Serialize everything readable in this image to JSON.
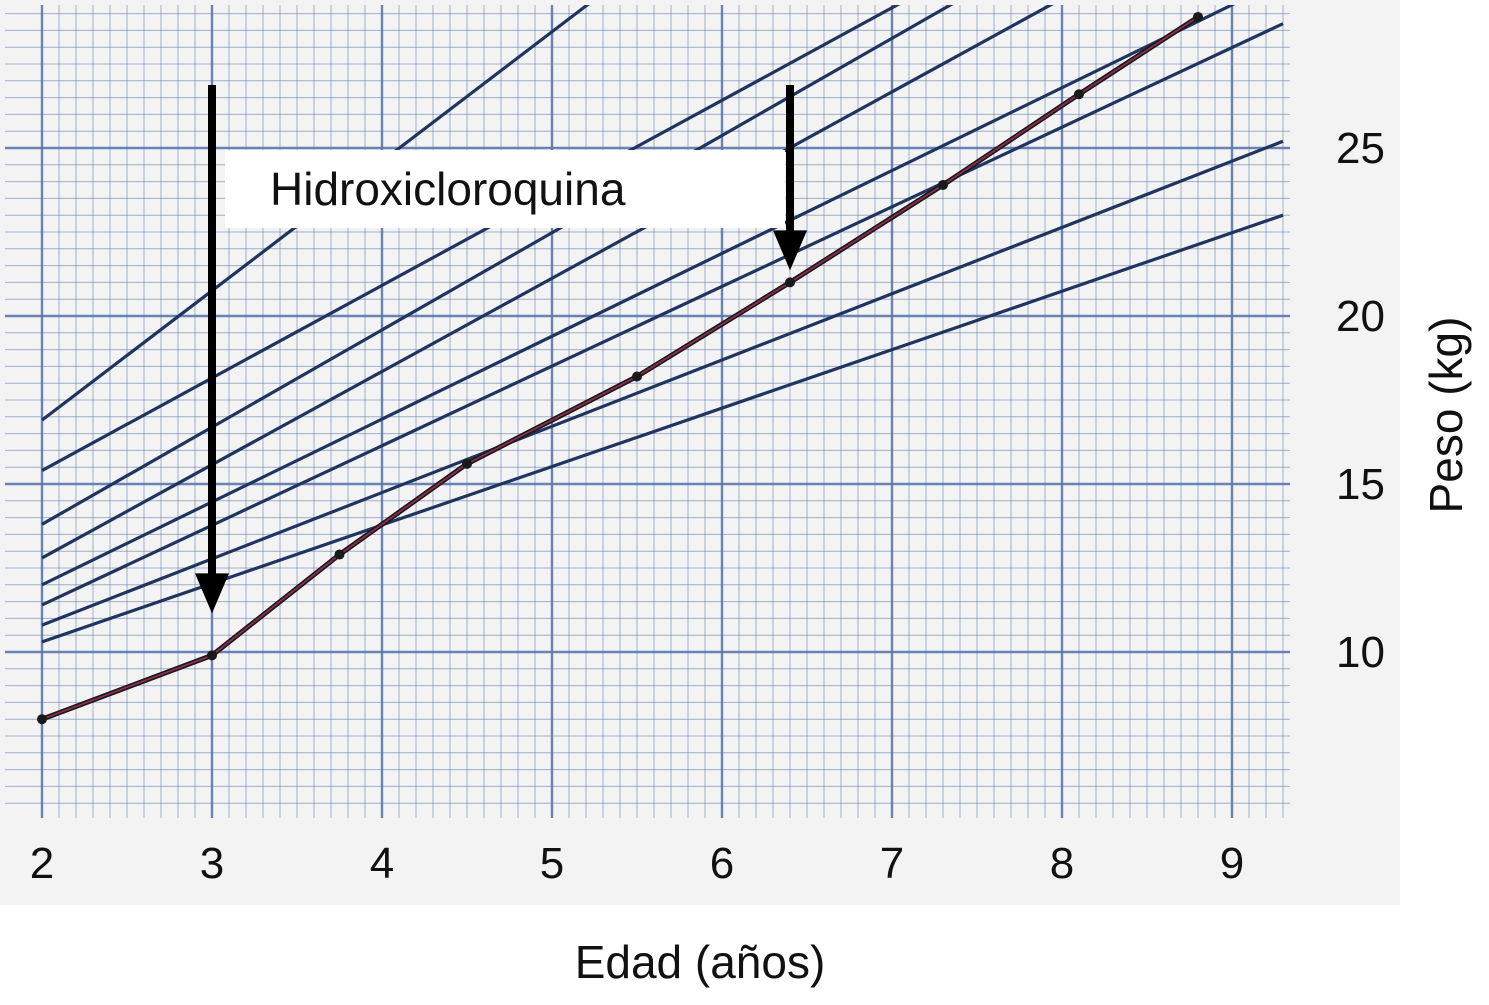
{
  "chart_data": {
    "type": "line",
    "title": "",
    "xlabel": "Edad (años)",
    "ylabel": "Peso (kg)",
    "xlim": [
      2,
      9.3
    ],
    "ylim": [
      5,
      30
    ],
    "x_ticks": [
      "2",
      "3",
      "4",
      "5",
      "6",
      "7",
      "8",
      "9"
    ],
    "y_ticks": [
      "10",
      "15",
      "20",
      "25"
    ],
    "grid": true,
    "grid_color": "#5a78a8",
    "background_color": "#f3f3f3",
    "reference_color": "#1f3560",
    "patient_color": "#1a1a1a",
    "patient_highlight_color": "#b03060",
    "reference_curves": [
      {
        "x": [
          2,
          9.3
        ],
        "y": [
          10.3,
          23.0
        ]
      },
      {
        "x": [
          2,
          9.3
        ],
        "y": [
          10.8,
          25.2
        ]
      },
      {
        "x": [
          2,
          9.3
        ],
        "y": [
          11.4,
          28.7
        ]
      },
      {
        "x": [
          2,
          9.3
        ],
        "y": [
          12.0,
          30.0
        ]
      },
      {
        "x": [
          2,
          8.2
        ],
        "y": [
          12.8,
          30.0
        ]
      },
      {
        "x": [
          2,
          7.6
        ],
        "y": [
          13.8,
          30.0
        ]
      },
      {
        "x": [
          2,
          7.3
        ],
        "y": [
          15.4,
          30.0
        ]
      },
      {
        "x": [
          2,
          5.4
        ],
        "y": [
          16.9,
          30.0
        ]
      }
    ],
    "series": [
      {
        "x": [
          2.0,
          3.0,
          3.75,
          4.5,
          5.5,
          6.4,
          7.3,
          8.1,
          8.8
        ],
        "y": [
          8.0,
          9.9,
          12.9,
          15.6,
          18.2,
          21.0,
          23.9,
          26.6,
          28.9
        ]
      }
    ],
    "annotations": [
      {
        "text": "Hidroxicloroquina",
        "arrow_x": [
          3.0,
          6.4
        ]
      }
    ]
  }
}
